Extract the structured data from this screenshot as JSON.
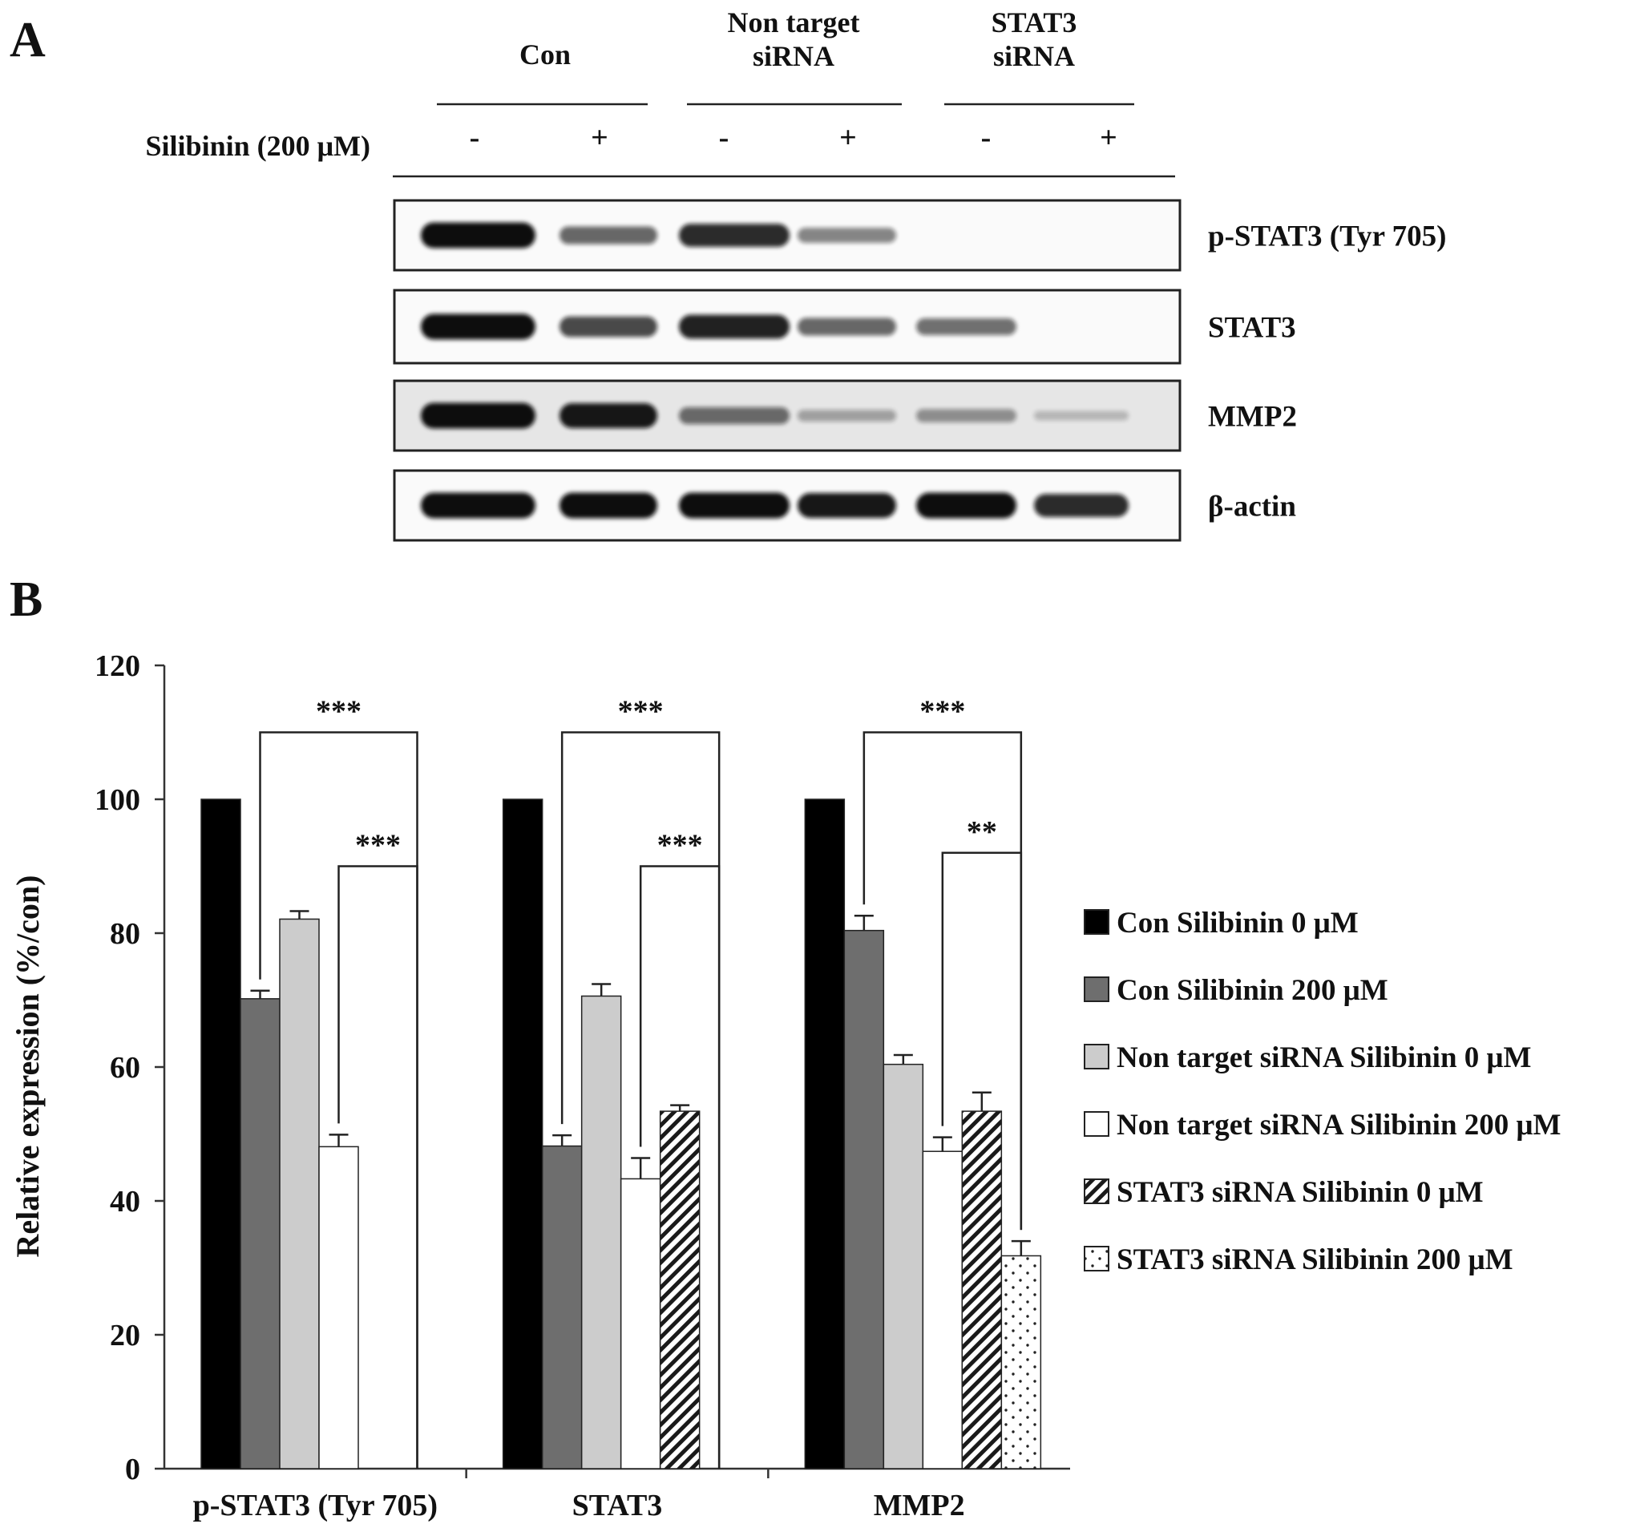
{
  "panel_a": {
    "letter": "A",
    "groups": [
      "Con",
      "Non target\nsiRNA",
      "STAT3\nsiRNA"
    ],
    "treatment_label": "Silibinin (200 μM)",
    "treatment_signs": [
      "-",
      "+",
      "-",
      "+",
      "-",
      "+"
    ],
    "blots": [
      {
        "label": "p-STAT3 (Tyr 705)",
        "intensities": [
          1.0,
          0.55,
          0.85,
          0.4,
          0.0,
          0.0
        ]
      },
      {
        "label": "STAT3",
        "intensities": [
          1.0,
          0.7,
          0.9,
          0.55,
          0.5,
          0.0
        ]
      },
      {
        "label": "MMP2",
        "intensities": [
          1.0,
          0.95,
          0.5,
          0.2,
          0.3,
          0.08
        ]
      },
      {
        "label": "β-actin",
        "intensities": [
          1.0,
          1.0,
          1.0,
          0.95,
          1.0,
          0.85
        ]
      }
    ],
    "colors": {
      "band": "#101010",
      "frame": "#222222"
    }
  },
  "panel_b": {
    "letter": "B"
  },
  "chart_data": {
    "type": "bar",
    "categories": [
      "p-STAT3 (Tyr 705)",
      "STAT3",
      "MMP2"
    ],
    "ylabel": "Relative expression (%/con)",
    "xlabel": "",
    "ylim": [
      0,
      120
    ],
    "yticks": [
      0,
      20,
      40,
      60,
      80,
      100,
      120
    ],
    "legend_position": "right",
    "grid": false,
    "series": [
      {
        "name": "Con Silibinin 0 μM",
        "values": [
          100,
          100,
          100
        ],
        "errors": [
          0,
          0,
          0
        ],
        "fill": "#000000",
        "pattern": "solid"
      },
      {
        "name": "Con Silibinin 200 μM",
        "values": [
          70.2,
          48.2,
          80.4
        ],
        "errors": [
          1.2,
          1.6,
          2.2
        ],
        "fill": "#6e6e6e",
        "pattern": "solid"
      },
      {
        "name": "Non target siRNA Silibinin 0 μM",
        "values": [
          82.1,
          70.6,
          60.4
        ],
        "errors": [
          1.2,
          1.8,
          1.4
        ],
        "fill": "#cccccc",
        "pattern": "solid"
      },
      {
        "name": "Non target siRNA Silibinin 200 μM",
        "values": [
          48.1,
          43.3,
          47.4
        ],
        "errors": [
          1.8,
          3.1,
          2.1
        ],
        "fill": "#ffffff",
        "pattern": "solid"
      },
      {
        "name": "STAT3 siRNA Silibinin 0 μM",
        "values": [
          null,
          53.4,
          53.4
        ],
        "errors": [
          0,
          0.9,
          2.8
        ],
        "fill": "#ffffff",
        "pattern": "hatch"
      },
      {
        "name": "STAT3 siRNA Silibinin 200 μM",
        "values": [
          null,
          null,
          31.8
        ],
        "errors": [
          0,
          0,
          2.2
        ],
        "fill": "#ffffff",
        "pattern": "dots"
      }
    ],
    "significance": [
      {
        "category": 0,
        "from_series": 1,
        "to_series": 5,
        "label": "***",
        "level": 110
      },
      {
        "category": 0,
        "from_series": 3,
        "to_series": 5,
        "label": "***",
        "level": 90
      },
      {
        "category": 1,
        "from_series": 1,
        "to_series": 5,
        "label": "***",
        "level": 110
      },
      {
        "category": 1,
        "from_series": 3,
        "to_series": 5,
        "label": "***",
        "level": 90
      },
      {
        "category": 2,
        "from_series": 1,
        "to_series": 5,
        "label": "***",
        "level": 110
      },
      {
        "category": 2,
        "from_series": 3,
        "to_series": 5,
        "label": "**",
        "level": 92
      }
    ]
  }
}
